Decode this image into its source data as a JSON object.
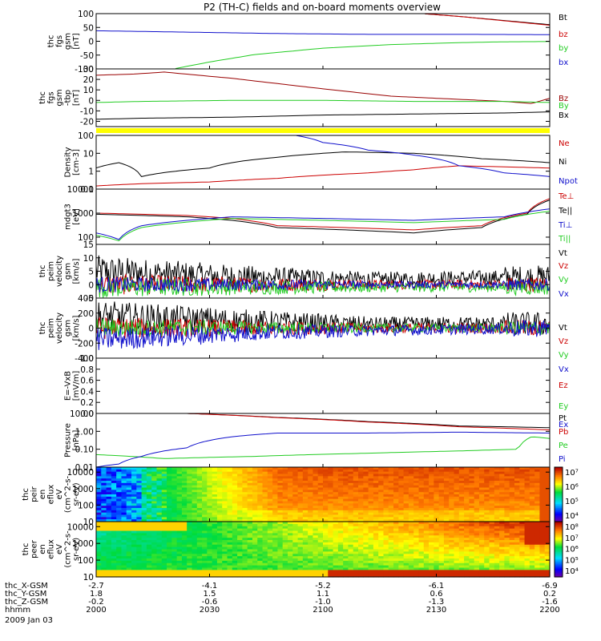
{
  "title": "P2 (TH-C) fields and on-board moments overview",
  "colors": {
    "black": "#000000",
    "red": "#cc0000",
    "green": "#22cc22",
    "blue": "#1010cc",
    "dark_red": "#990000",
    "yellow": "#ffff00"
  },
  "chart_data": [
    {
      "type": "line",
      "id": "bgse",
      "ylabel": [
        "thc",
        "fgs",
        "gsm",
        "[nT]"
      ],
      "ylim": [
        -100,
        100
      ],
      "ticks": [
        "100",
        "50",
        "0",
        "-50",
        "-100"
      ],
      "tick_values": [
        100,
        50,
        0,
        -50,
        -100
      ],
      "series": [
        {
          "name": "Bt",
          "color": "#000000",
          "x": [
            0.72,
            0.8,
            0.9,
            1.0
          ],
          "y": [
            100,
            90,
            75,
            60
          ]
        },
        {
          "name": "bz",
          "color": "#cc0000",
          "x": [
            0.72,
            0.8,
            0.9,
            1.0
          ],
          "y": [
            100,
            90,
            74,
            58
          ]
        },
        {
          "name": "by",
          "color": "#22cc22",
          "x": [
            0.17,
            0.25,
            0.35,
            0.5,
            0.65,
            0.8,
            0.9,
            1.0
          ],
          "y": [
            -100,
            -75,
            -48,
            -25,
            -12,
            -5,
            -2,
            -1
          ]
        },
        {
          "name": "bx",
          "color": "#1010cc",
          "x": [
            0.0,
            0.2,
            0.4,
            0.6,
            0.8,
            1.0
          ],
          "y": [
            38,
            33,
            28,
            25,
            25,
            24
          ]
        }
      ]
    },
    {
      "type": "line",
      "id": "bgsm",
      "ylabel": [
        "thc",
        "fgs",
        "gsm",
        "-tbp",
        "[nT]"
      ],
      "ylim": [
        -25,
        30
      ],
      "ticks": [
        "30",
        "20",
        "10",
        "0",
        "-10",
        "-20"
      ],
      "tick_values": [
        30,
        20,
        10,
        0,
        -10,
        -20
      ],
      "series": [
        {
          "name": "Bz",
          "color": "#990000",
          "x": [
            0.0,
            0.08,
            0.15,
            0.3,
            0.5,
            0.65,
            0.8,
            0.9,
            0.96,
            1.0
          ],
          "y": [
            24,
            25,
            27,
            21,
            11,
            4,
            1,
            -1,
            -3,
            2
          ]
        },
        {
          "name": "By",
          "color": "#22cc22",
          "x": [
            0.0,
            0.1,
            0.3,
            0.5,
            0.7,
            0.9,
            1.0
          ],
          "y": [
            -2,
            -1,
            0,
            0,
            -1,
            -1,
            -2
          ]
        },
        {
          "name": "Bx",
          "color": "#000000",
          "x": [
            0.0,
            0.1,
            0.3,
            0.5,
            0.7,
            0.9,
            1.0
          ],
          "y": [
            -18,
            -17,
            -16,
            -14,
            -13,
            -12,
            -11
          ]
        }
      ]
    },
    {
      "type": "line",
      "id": "density",
      "log": true,
      "ylabel": [
        "Density",
        "[cm-3]"
      ],
      "ylim": [
        0.1,
        100
      ],
      "ticks": [
        "100",
        "10",
        "1",
        "0.1"
      ],
      "tick_values": [
        100,
        10,
        1,
        0.1
      ],
      "series": [
        {
          "name": "Ne",
          "color": "#cc0000",
          "x": [
            0.0,
            0.1,
            0.25,
            0.4,
            0.6,
            0.7,
            0.8,
            1.0
          ],
          "y": [
            0.15,
            0.2,
            0.25,
            0.4,
            0.8,
            1.2,
            2.0,
            1.5
          ]
        },
        {
          "name": "Ni",
          "color": "#000000",
          "x": [
            0.0,
            0.05,
            0.1,
            0.25,
            0.4,
            0.55,
            0.7,
            0.85,
            1.0
          ],
          "y": [
            1.5,
            3,
            0.5,
            1.5,
            6,
            12,
            10,
            5,
            3
          ]
        },
        {
          "name": "Npot",
          "color": "#1010cc",
          "x": [
            0.44,
            0.5,
            0.6,
            0.7,
            0.8,
            0.9,
            1.0
          ],
          "y": [
            100,
            40,
            15,
            8,
            2,
            0.8,
            0.5
          ]
        }
      ]
    },
    {
      "type": "line",
      "id": "temp",
      "log": true,
      "ylabel": [
        "mdgt3",
        "[eV]"
      ],
      "ylim": [
        50,
        10000
      ],
      "ticks": [
        "10000",
        "1000",
        "100"
      ],
      "tick_values": [
        10000,
        1000,
        100
      ],
      "series": [
        {
          "name": "Te⊥",
          "color": "#cc0000",
          "x": [
            0.0,
            0.1,
            0.2,
            0.3,
            0.4,
            0.55,
            0.7,
            0.85,
            0.95,
            1.0
          ],
          "y": [
            1000,
            900,
            800,
            600,
            300,
            250,
            200,
            300,
            1000,
            4000
          ]
        },
        {
          "name": "Te||",
          "color": "#000000",
          "x": [
            0.0,
            0.1,
            0.2,
            0.3,
            0.4,
            0.55,
            0.7,
            0.85,
            0.95,
            1.0
          ],
          "y": [
            900,
            800,
            700,
            500,
            250,
            200,
            150,
            250,
            900,
            3500
          ]
        },
        {
          "name": "Ti⊥",
          "color": "#1010cc",
          "x": [
            0.0,
            0.05,
            0.1,
            0.3,
            0.5,
            0.7,
            0.9,
            1.0
          ],
          "y": [
            150,
            80,
            300,
            700,
            600,
            500,
            700,
            1500
          ]
        },
        {
          "name": "Ti||",
          "color": "#22cc22",
          "x": [
            0.0,
            0.05,
            0.1,
            0.3,
            0.5,
            0.7,
            0.9,
            1.0
          ],
          "y": [
            120,
            70,
            250,
            600,
            500,
            400,
            550,
            1200
          ]
        }
      ]
    },
    {
      "type": "line",
      "id": "velgsm",
      "noisy": true,
      "ylabel": [
        "thc",
        "peim",
        "velocity",
        "gsm",
        "[km/s]"
      ],
      "ylim": [
        -5,
        15
      ],
      "ticks": [
        "15",
        "10",
        "5",
        "0",
        "-5"
      ],
      "tick_values": [
        15,
        10,
        5,
        0,
        -5
      ],
      "series": [
        {
          "name": "Vt",
          "color": "#000000",
          "x": [
            0.0,
            0.3,
            0.6,
            1.0
          ],
          "y": [
            5,
            3,
            2,
            3
          ],
          "noise": 6
        },
        {
          "name": "Vz",
          "color": "#cc0000",
          "x": [
            0.0,
            1.0
          ],
          "y": [
            0,
            0
          ],
          "noise": 4
        },
        {
          "name": "Vy",
          "color": "#22cc22",
          "x": [
            0.0,
            1.0
          ],
          "y": [
            -1,
            -1
          ],
          "noise": 4
        },
        {
          "name": "Vx",
          "color": "#1010cc",
          "x": [
            0.0,
            1.0
          ],
          "y": [
            0,
            0
          ],
          "noise": 3
        }
      ]
    },
    {
      "type": "line",
      "id": "velgsm2",
      "noisy": true,
      "ylabel": [
        "thc",
        "peim",
        "velocity",
        "gsm",
        "[km/s]"
      ],
      "ylim": [
        -400,
        400
      ],
      "ticks": [
        "400",
        "200",
        "0",
        "-200",
        "-400"
      ],
      "tick_values": [
        400,
        200,
        0,
        -200,
        -400
      ],
      "series": [
        {
          "name": "Vt",
          "color": "#000000",
          "x": [
            0.0,
            0.3,
            0.6,
            1.0
          ],
          "y": [
            150,
            100,
            50,
            60
          ],
          "noise": 220
        },
        {
          "name": "Vz",
          "color": "#cc0000",
          "x": [
            0.0,
            1.0
          ],
          "y": [
            0,
            0
          ],
          "noise": 150
        },
        {
          "name": "Vy",
          "color": "#22cc22",
          "x": [
            0.0,
            1.0
          ],
          "y": [
            0,
            0
          ],
          "noise": 130
        },
        {
          "name": "Vx",
          "color": "#1010cc",
          "x": [
            0.0,
            0.4,
            1.0
          ],
          "y": [
            -150,
            -50,
            0
          ],
          "noise": 160
        }
      ]
    },
    {
      "type": "line",
      "id": "efield",
      "ylabel": [
        "E=-VxB",
        "[mV/m]"
      ],
      "ylim": [
        0,
        1
      ],
      "ticks": [
        "1.0",
        "0.8",
        "0.6",
        "0.4",
        "0.2",
        "0.0"
      ],
      "tick_values": [
        1,
        0.8,
        0.6,
        0.4,
        0.2,
        0
      ],
      "series": [
        {
          "name": "Ez",
          "color": "#cc0000",
          "x": [],
          "y": []
        },
        {
          "name": "Ey",
          "color": "#22cc22",
          "x": [],
          "y": []
        },
        {
          "name": "Ex",
          "color": "#1010cc",
          "x": [],
          "y": []
        }
      ]
    },
    {
      "type": "line",
      "id": "pressure",
      "log": true,
      "ylabel": [
        "Pressure",
        "[nPa]"
      ],
      "ylim": [
        0.01,
        10
      ],
      "ticks": [
        "10.00",
        "1.00",
        "0.10",
        "0.01"
      ],
      "tick_values": [
        10,
        1,
        0.1,
        0.01
      ],
      "series": [
        {
          "name": "Pt",
          "color": "#000000",
          "x": [
            0.2,
            0.4,
            0.6,
            0.8,
            1.0
          ],
          "y": [
            10,
            6,
            3.5,
            2,
            1.6
          ]
        },
        {
          "name": "Pb",
          "color": "#cc0000",
          "x": [
            0.2,
            0.4,
            0.6,
            0.8,
            1.0
          ],
          "y": [
            10,
            5.8,
            3.3,
            1.8,
            1.2
          ]
        },
        {
          "name": "Pe",
          "color": "#22cc22",
          "x": [
            0.0,
            0.15,
            0.35,
            0.6,
            0.8,
            0.93,
            0.96,
            1.0
          ],
          "y": [
            0.05,
            0.03,
            0.04,
            0.06,
            0.08,
            0.1,
            0.5,
            0.4
          ]
        },
        {
          "name": "Pi",
          "color": "#1010cc",
          "x": [
            0.0,
            0.05,
            0.1,
            0.2,
            0.3,
            0.4,
            0.6,
            0.8,
            1.0
          ],
          "y": [
            0.01,
            0.015,
            0.04,
            0.12,
            0.5,
            0.8,
            0.8,
            0.9,
            0.8
          ]
        }
      ]
    },
    {
      "type": "heatmap",
      "id": "ion_spec",
      "log": true,
      "ylabel": [
        "thc",
        "peir",
        "en",
        "eflux",
        "eV",
        "(cm^2-s-",
        "sr-eV)"
      ],
      "ylim": [
        10,
        20000
      ],
      "ticks": [
        "10000",
        "1000",
        "100",
        "10"
      ],
      "tick_values": [
        10000,
        1000,
        100,
        10
      ],
      "cbar_ticks": [
        "10⁷",
        "10⁶",
        "10⁵",
        "10⁴"
      ],
      "cbar_range": [
        3.5,
        7.2
      ]
    },
    {
      "type": "heatmap",
      "id": "elec_spec",
      "log": true,
      "ylabel": [
        "thc",
        "peer",
        "en",
        "eflux",
        "eV",
        "(cm^2-s-",
        "sr-eV)"
      ],
      "ylim": [
        10,
        20000
      ],
      "ticks": [
        "10000",
        "1000",
        "100",
        "10"
      ],
      "tick_values": [
        10000,
        1000,
        100,
        10
      ],
      "cbar_ticks": [
        "10⁸",
        "10⁷",
        "10⁶",
        "10⁵",
        "10⁴"
      ],
      "cbar_range": [
        3.5,
        8.2
      ]
    }
  ],
  "x_axis": {
    "rows": [
      {
        "label": "thc_X-GSM",
        "values": [
          "-2.7",
          "-4.1",
          "-5.2",
          "-6.1",
          "-6.9"
        ]
      },
      {
        "label": "thc_Y-GSM",
        "values": [
          "1.8",
          "1.5",
          "1.1",
          "0.6",
          "0.2"
        ]
      },
      {
        "label": "thc_Z-GSM",
        "values": [
          "-0.2",
          "-0.6",
          "-1.0",
          "-1.3",
          "-1.6"
        ]
      },
      {
        "label": "hhmm",
        "values": [
          "2000",
          "2030",
          "2100",
          "2130",
          "2200"
        ]
      }
    ],
    "date": "2009 Jan 03"
  }
}
